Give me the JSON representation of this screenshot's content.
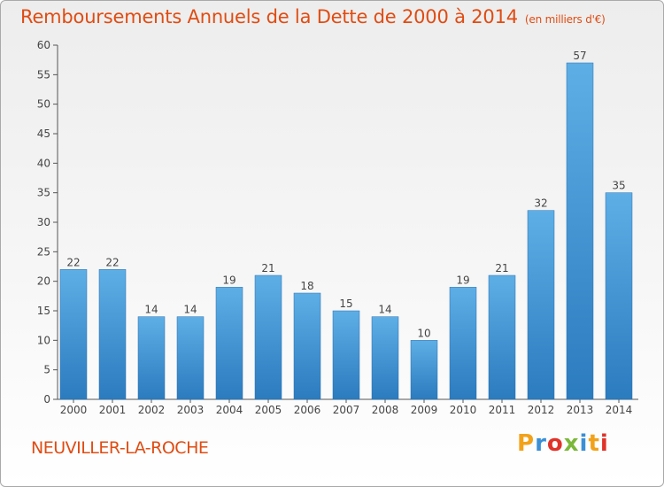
{
  "title": "Remboursements Annuels de la Dette de 2000 à 2014",
  "unit_note": "(en milliers d'€)",
  "commune": "NEUVILLER-LA-ROCHE",
  "logo": "Proxiti",
  "colors": {
    "title": "#e04c12",
    "bar_top": "#5eaee6",
    "bar_bottom": "#2b7bbf"
  },
  "chart_data": {
    "type": "bar",
    "title": "Remboursements Annuels de la Dette de 2000 à 2014",
    "categories": [
      "2000",
      "2001",
      "2002",
      "2003",
      "2004",
      "2005",
      "2006",
      "2007",
      "2008",
      "2009",
      "2010",
      "2011",
      "2012",
      "2013",
      "2014"
    ],
    "values": [
      22,
      22,
      14,
      14,
      19,
      21,
      18,
      15,
      14,
      10,
      19,
      21,
      32,
      57,
      35
    ],
    "ylim": [
      0,
      60
    ],
    "yticks": [
      0,
      5,
      10,
      15,
      20,
      25,
      30,
      35,
      40,
      45,
      50,
      55,
      60
    ],
    "grid": false,
    "xlabel": "",
    "ylabel": ""
  }
}
